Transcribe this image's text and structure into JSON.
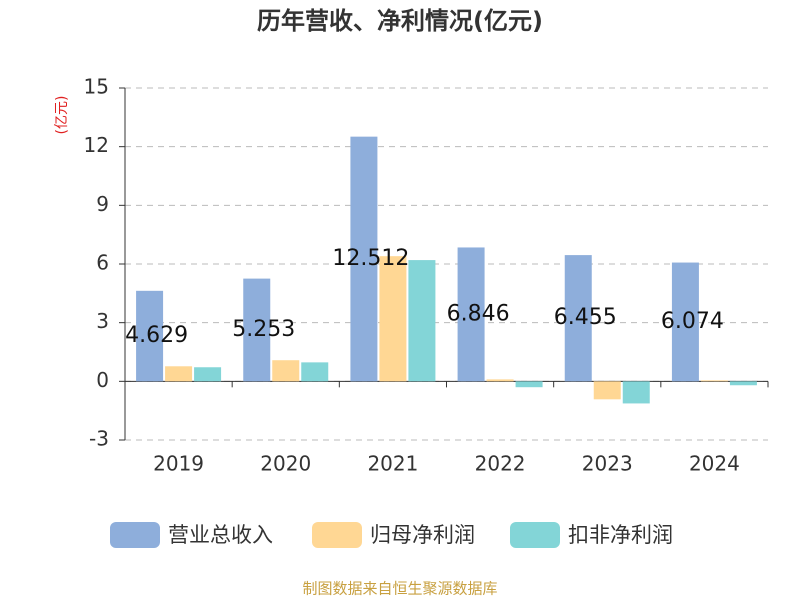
{
  "chart_data": {
    "type": "bar",
    "title": "历年营收、净利情况(亿元)",
    "y_label": "(亿元)",
    "source": "制图数据来自恒生聚源数据库",
    "categories": [
      "2019",
      "2020",
      "2021",
      "2022",
      "2023",
      "2024"
    ],
    "series": [
      {
        "name": "营业总收入",
        "color": "#8eaedb",
        "labels": true,
        "values": [
          4.629,
          5.253,
          12.512,
          6.846,
          6.455,
          6.074
        ]
      },
      {
        "name": "归母净利润",
        "color": "#ffd794",
        "values": [
          0.77,
          1.08,
          6.4,
          0.1,
          -0.92,
          0.05
        ]
      },
      {
        "name": "扣非净利润",
        "color": "#83d5d7",
        "values": [
          0.72,
          0.97,
          6.2,
          -0.3,
          -1.13,
          -0.2
        ]
      }
    ],
    "ylim": [
      -3,
      15
    ],
    "yticks": [
      -3,
      0,
      3,
      6,
      9,
      12,
      15
    ],
    "grid": true
  }
}
